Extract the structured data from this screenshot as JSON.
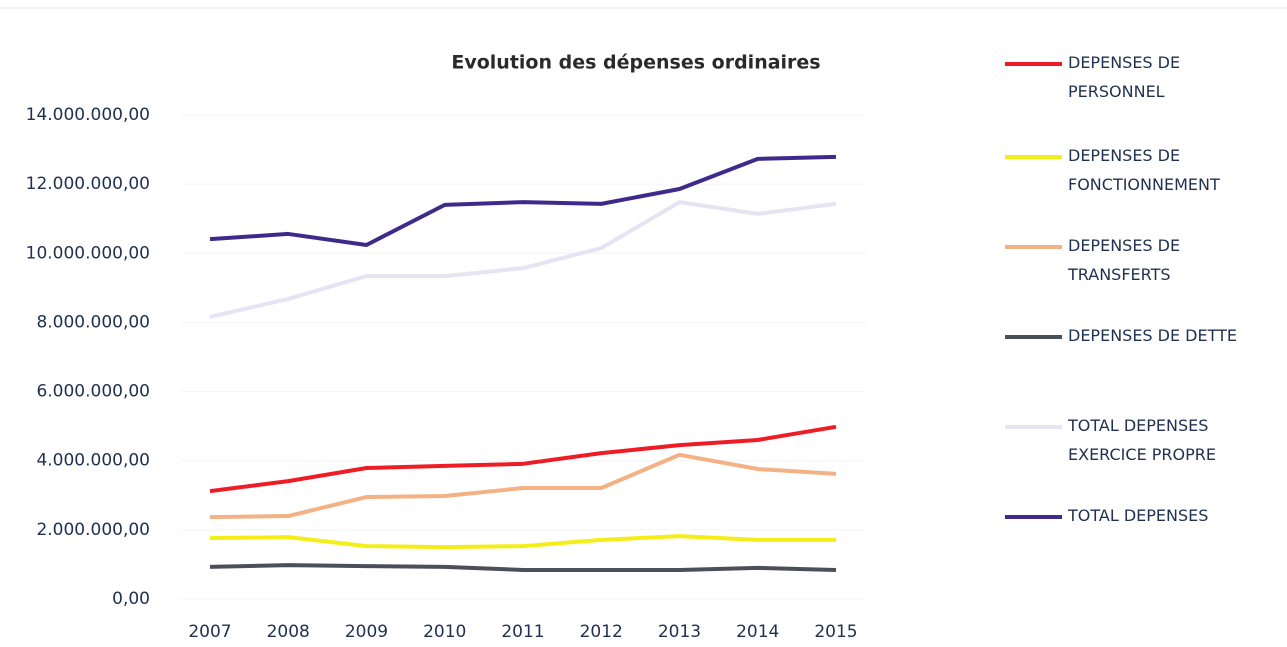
{
  "chart_data": {
    "type": "line",
    "title": "Evolution des dépenses ordinaires",
    "categories": [
      "2007",
      "2008",
      "2009",
      "2010",
      "2011",
      "2012",
      "2013",
      "2014",
      "2015"
    ],
    "series": [
      {
        "name": "DEPENSES DE PERSONNEL",
        "color": "#ee1c25",
        "values": [
          3120000,
          3410000,
          3790000,
          3850000,
          3910000,
          4220000,
          4450000,
          4600000,
          4980000
        ]
      },
      {
        "name": "DEPENSES DE FONCTIONNEMENT",
        "color": "#f5ee16",
        "values": [
          1760000,
          1790000,
          1530000,
          1500000,
          1530000,
          1710000,
          1820000,
          1710000,
          1710000
        ]
      },
      {
        "name": "DEPENSES DE TRANSFERTS",
        "color": "#f4b183",
        "values": [
          2370000,
          2400000,
          2950000,
          2980000,
          3210000,
          3210000,
          4170000,
          3760000,
          3620000
        ]
      },
      {
        "name": "DEPENSES DE DETTE",
        "color": "#4a4f5c",
        "values": [
          930000,
          980000,
          950000,
          930000,
          840000,
          840000,
          840000,
          900000,
          840000
        ]
      },
      {
        "name": "TOTAL DEPENSES EXERCICE PROPRE",
        "color": "#e6e3f3",
        "values": [
          8160000,
          8680000,
          9340000,
          9340000,
          9570000,
          10150000,
          11480000,
          11140000,
          11430000
        ]
      },
      {
        "name": "TOTAL DEPENSES",
        "color": "#3f2a8c",
        "values": [
          10410000,
          10560000,
          10240000,
          11400000,
          11480000,
          11430000,
          11860000,
          12730000,
          12790000
        ]
      }
    ],
    "ylim": [
      0,
      14000000
    ],
    "yticks": [
      {
        "value": 0,
        "label": "0,00"
      },
      {
        "value": 2000000,
        "label": "2.000.000,00"
      },
      {
        "value": 4000000,
        "label": "4.000.000,00"
      },
      {
        "value": 6000000,
        "label": "6.000.000,00"
      },
      {
        "value": 8000000,
        "label": "8.000.000,00"
      },
      {
        "value": 10000000,
        "label": "10.000.000,00"
      },
      {
        "value": 12000000,
        "label": "12.000.000,00"
      },
      {
        "value": 14000000,
        "label": "14.000.000,00"
      }
    ],
    "grid": true,
    "legend": "right"
  }
}
